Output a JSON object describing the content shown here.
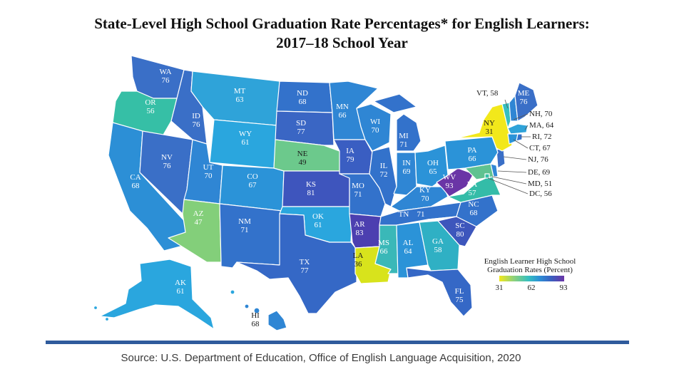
{
  "title_line1": "State-Level High School Graduation Rate Percentages* for English Learners:",
  "title_line2": "2017–18 School Year",
  "source": "Source: U.S. Department of Education, Office of English Language Acquisition, 2020",
  "legend": {
    "title_line1": "English Learner High School",
    "title_line2": "Graduation Rates (Percent)",
    "min": "31",
    "mid": "62",
    "max": "93",
    "colors": [
      "#f2e81b",
      "#8fd17a",
      "#36bfc0",
      "#2c8fd6",
      "#3a5fc0",
      "#6a35a6"
    ]
  },
  "states": [
    {
      "abbr": "WA",
      "value": "76"
    },
    {
      "abbr": "OR",
      "value": "56"
    },
    {
      "abbr": "CA",
      "value": "68"
    },
    {
      "abbr": "NV",
      "value": "76"
    },
    {
      "abbr": "ID",
      "value": "76"
    },
    {
      "abbr": "MT",
      "value": "63"
    },
    {
      "abbr": "WY",
      "value": "61"
    },
    {
      "abbr": "UT",
      "value": "70"
    },
    {
      "abbr": "AZ",
      "value": "47"
    },
    {
      "abbr": "CO",
      "value": "67"
    },
    {
      "abbr": "NM",
      "value": "71"
    },
    {
      "abbr": "ND",
      "value": "68"
    },
    {
      "abbr": "SD",
      "value": "77"
    },
    {
      "abbr": "NE",
      "value": "49"
    },
    {
      "abbr": "KS",
      "value": "81"
    },
    {
      "abbr": "OK",
      "value": "61"
    },
    {
      "abbr": "TX",
      "value": "77"
    },
    {
      "abbr": "MN",
      "value": "66"
    },
    {
      "abbr": "IA",
      "value": "79"
    },
    {
      "abbr": "MO",
      "value": "71"
    },
    {
      "abbr": "AR",
      "value": "83"
    },
    {
      "abbr": "LA",
      "value": "36"
    },
    {
      "abbr": "WI",
      "value": "70"
    },
    {
      "abbr": "IL",
      "value": "72"
    },
    {
      "abbr": "MS",
      "value": "66"
    },
    {
      "abbr": "MI",
      "value": "71"
    },
    {
      "abbr": "IN",
      "value": "69"
    },
    {
      "abbr": "KY",
      "value": "70"
    },
    {
      "abbr": "TN",
      "value": "71"
    },
    {
      "abbr": "AL",
      "value": "64"
    },
    {
      "abbr": "OH",
      "value": "65"
    },
    {
      "abbr": "GA",
      "value": "58"
    },
    {
      "abbr": "FL",
      "value": "75"
    },
    {
      "abbr": "SC",
      "value": "80"
    },
    {
      "abbr": "NC",
      "value": "68"
    },
    {
      "abbr": "VA",
      "value": "57"
    },
    {
      "abbr": "WV",
      "value": "93"
    },
    {
      "abbr": "PA",
      "value": "66"
    },
    {
      "abbr": "NY",
      "value": "31"
    },
    {
      "abbr": "ME",
      "value": "76"
    },
    {
      "abbr": "AK",
      "value": "61"
    },
    {
      "abbr": "HI",
      "value": "68"
    }
  ],
  "callouts": [
    {
      "text": "VT, 58"
    },
    {
      "text": "NH, 70"
    },
    {
      "text": "MA, 64"
    },
    {
      "text": "RI, 72"
    },
    {
      "text": "CT, 67"
    },
    {
      "text": "NJ, 76"
    },
    {
      "text": "DE, 69"
    },
    {
      "text": "MD, 51"
    },
    {
      "text": "DC, 56"
    }
  ]
}
